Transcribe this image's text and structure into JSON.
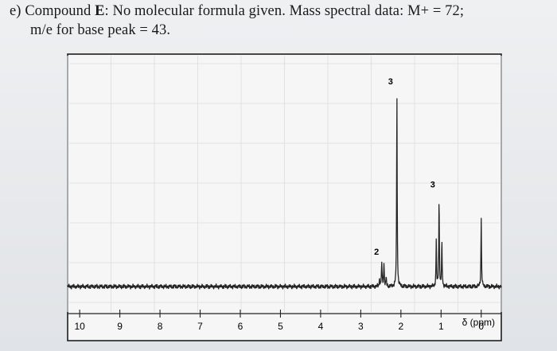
{
  "problem": {
    "label": "e)",
    "line1_prefix": "Compound ",
    "compound_letter": "E",
    "line1_rest": ": No molecular formula given. Mass spectral data: M+ = 72;",
    "line2": "m/e for base peak = 43."
  },
  "chart_data": {
    "type": "line",
    "title": "",
    "subtitle": "",
    "xlabel": "δ (ppm)",
    "ylabel": "",
    "xlim": [
      10.3,
      -0.5
    ],
    "ylim": [
      0,
      1
    ],
    "x_reversed": true,
    "grid": false,
    "x_ticks": [
      10,
      9,
      8,
      7,
      6,
      5,
      4,
      3,
      2,
      1,
      0
    ],
    "x_tick_labels": [
      "10",
      "9",
      "8",
      "7",
      "6",
      "5",
      "4",
      "3",
      "2",
      "1",
      "0"
    ],
    "series": [
      {
        "name": "",
        "peaks": [
          {
            "shift": 2.45,
            "height": 0.12,
            "kind": "quartet"
          },
          {
            "shift": 2.1,
            "height": 0.98,
            "kind": "singlet"
          },
          {
            "shift": 1.05,
            "height": 0.46,
            "kind": "triplet"
          }
        ],
        "tms_reference": {
          "shift": 0.0,
          "height": 0.35
        }
      }
    ],
    "integrations": [
      {
        "label": "2",
        "shift": 2.45
      },
      {
        "label": "3",
        "shift": 2.1
      },
      {
        "label": "3",
        "shift": 1.05
      }
    ]
  }
}
